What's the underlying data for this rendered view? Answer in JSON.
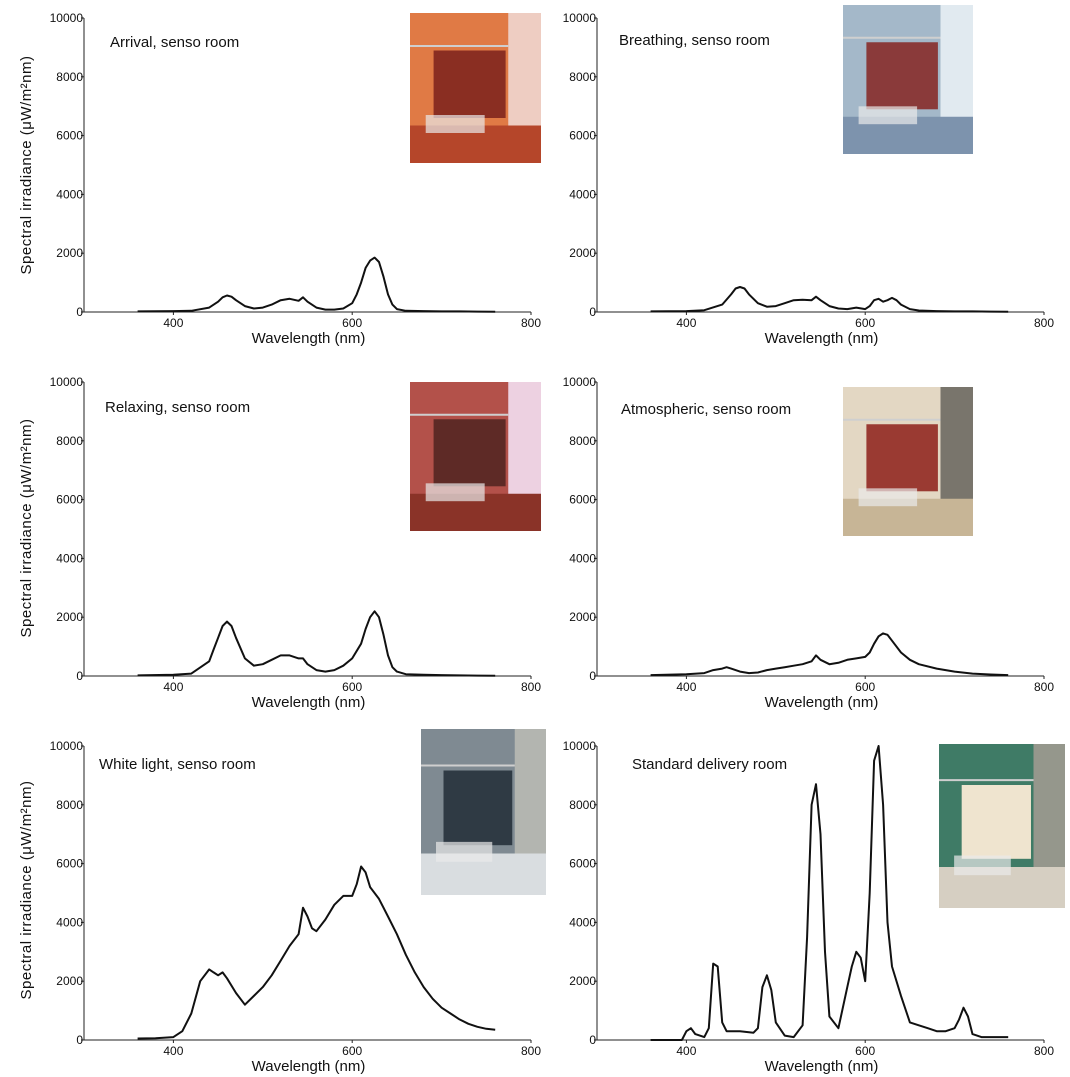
{
  "figure": {
    "ylabel": "Spectral irradiance (μW/m²nm)",
    "xlabel": "Wavelength (nm)"
  },
  "chart_data": [
    {
      "type": "line",
      "title": "Arrival, senso room",
      "xlabel": "Wavelength (nm)",
      "ylabel": "Spectral irradiance (μW/m²nm)",
      "xlim": [
        300,
        800
      ],
      "ylim": [
        0,
        10000
      ],
      "xticks": [
        400,
        600,
        800
      ],
      "yticks": [
        0,
        2000,
        4000,
        6000,
        8000,
        10000
      ],
      "grid": false,
      "photo": {
        "name": "arrival-room-photo",
        "colors": [
          "#b5462a",
          "#e07a45",
          "#8a2e22",
          "#f0d6cf"
        ]
      },
      "x": [
        360,
        400,
        420,
        440,
        450,
        455,
        460,
        465,
        470,
        480,
        490,
        500,
        510,
        520,
        530,
        540,
        545,
        550,
        560,
        570,
        580,
        590,
        600,
        605,
        610,
        615,
        620,
        625,
        630,
        635,
        640,
        645,
        650,
        660,
        680,
        700,
        720,
        740,
        760
      ],
      "values": [
        20,
        30,
        40,
        150,
        350,
        500,
        560,
        520,
        400,
        200,
        120,
        150,
        250,
        400,
        450,
        380,
        500,
        350,
        150,
        80,
        80,
        120,
        300,
        600,
        1000,
        1500,
        1750,
        1850,
        1700,
        1200,
        600,
        250,
        100,
        40,
        30,
        20,
        20,
        15,
        10
      ]
    },
    {
      "type": "line",
      "title": "Breathing, senso room",
      "xlabel": "Wavelength (nm)",
      "ylabel": "Spectral irradiance (μW/m²nm)",
      "xlim": [
        300,
        800
      ],
      "ylim": [
        0,
        10000
      ],
      "xticks": [
        400,
        600,
        800
      ],
      "yticks": [
        0,
        2000,
        4000,
        6000,
        8000,
        10000
      ],
      "grid": false,
      "photo": {
        "name": "breathing-room-photo",
        "colors": [
          "#7d93ad",
          "#a4b8c9",
          "#8a3a3a",
          "#e8f0f4"
        ]
      },
      "x": [
        360,
        400,
        420,
        440,
        450,
        455,
        460,
        465,
        470,
        480,
        490,
        500,
        510,
        520,
        530,
        540,
        545,
        550,
        560,
        570,
        580,
        590,
        600,
        605,
        610,
        615,
        620,
        625,
        630,
        635,
        640,
        650,
        660,
        680,
        700,
        720,
        740,
        760
      ],
      "values": [
        20,
        30,
        60,
        250,
        600,
        800,
        850,
        800,
        600,
        300,
        180,
        200,
        300,
        400,
        420,
        400,
        520,
        400,
        200,
        120,
        100,
        150,
        100,
        200,
        400,
        450,
        350,
        400,
        480,
        400,
        250,
        100,
        50,
        30,
        20,
        20,
        15,
        10
      ]
    },
    {
      "type": "line",
      "title": "Relaxing, senso room",
      "xlabel": "Wavelength (nm)",
      "ylabel": "Spectral irradiance (μW/m²nm)",
      "xlim": [
        300,
        800
      ],
      "ylim": [
        0,
        10000
      ],
      "xticks": [
        400,
        600,
        800
      ],
      "yticks": [
        0,
        2000,
        4000,
        6000,
        8000,
        10000
      ],
      "grid": false,
      "photo": {
        "name": "relaxing-room-photo",
        "colors": [
          "#8a3328",
          "#b3514a",
          "#5e2a26",
          "#f3dff2"
        ]
      },
      "x": [
        360,
        400,
        420,
        440,
        445,
        450,
        455,
        460,
        465,
        470,
        480,
        490,
        500,
        510,
        520,
        530,
        540,
        545,
        550,
        560,
        570,
        580,
        590,
        600,
        610,
        615,
        620,
        625,
        630,
        635,
        640,
        645,
        650,
        660,
        680,
        700,
        720,
        740,
        760
      ],
      "values": [
        20,
        40,
        80,
        500,
        900,
        1300,
        1700,
        1850,
        1700,
        1300,
        600,
        350,
        400,
        550,
        700,
        700,
        600,
        600,
        400,
        200,
        150,
        200,
        350,
        600,
        1100,
        1600,
        2000,
        2200,
        2000,
        1400,
        700,
        300,
        150,
        60,
        40,
        30,
        20,
        15,
        10
      ]
    },
    {
      "type": "line",
      "title": "Atmospheric, senso room",
      "xlabel": "Wavelength (nm)",
      "ylabel": "Spectral irradiance (μW/m²nm)",
      "xlim": [
        300,
        800
      ],
      "ylim": [
        0,
        10000
      ],
      "xticks": [
        400,
        600,
        800
      ],
      "yticks": [
        0,
        2000,
        4000,
        6000,
        8000,
        10000
      ],
      "grid": false,
      "photo": {
        "name": "atmospheric-room-photo",
        "colors": [
          "#c7b596",
          "#e3d7c3",
          "#9a3a32",
          "#6d6a63"
        ]
      },
      "x": [
        360,
        400,
        420,
        430,
        440,
        445,
        450,
        460,
        470,
        480,
        490,
        500,
        510,
        520,
        530,
        540,
        545,
        550,
        560,
        570,
        580,
        590,
        600,
        605,
        610,
        615,
        620,
        625,
        630,
        640,
        650,
        660,
        680,
        700,
        720,
        740,
        760
      ],
      "values": [
        30,
        60,
        100,
        200,
        250,
        300,
        250,
        150,
        100,
        120,
        200,
        250,
        300,
        350,
        400,
        500,
        700,
        550,
        400,
        450,
        550,
        600,
        650,
        800,
        1100,
        1350,
        1450,
        1400,
        1200,
        800,
        550,
        400,
        250,
        150,
        80,
        50,
        30
      ]
    },
    {
      "type": "line",
      "title": "White light, senso room",
      "xlabel": "Wavelength (nm)",
      "ylabel": "Spectral irradiance (μW/m²nm)",
      "xlim": [
        300,
        800
      ],
      "ylim": [
        0,
        10000
      ],
      "xticks": [
        400,
        600,
        800
      ],
      "yticks": [
        0,
        2000,
        4000,
        6000,
        8000,
        10000
      ],
      "grid": false,
      "photo": {
        "name": "white-light-room-photo",
        "colors": [
          "#d9dde0",
          "#7f8a92",
          "#2f3a44",
          "#b9b9b4"
        ]
      },
      "x": [
        360,
        380,
        400,
        410,
        420,
        430,
        440,
        445,
        450,
        455,
        460,
        470,
        480,
        490,
        500,
        510,
        520,
        530,
        540,
        545,
        550,
        555,
        560,
        570,
        580,
        590,
        600,
        605,
        610,
        615,
        620,
        630,
        640,
        650,
        660,
        670,
        680,
        690,
        700,
        710,
        720,
        730,
        740,
        750,
        760
      ],
      "values": [
        50,
        60,
        100,
        300,
        900,
        2000,
        2400,
        2300,
        2200,
        2300,
        2100,
        1600,
        1200,
        1500,
        1800,
        2200,
        2700,
        3200,
        3600,
        4500,
        4200,
        3800,
        3700,
        4100,
        4600,
        4900,
        4900,
        5300,
        5900,
        5700,
        5200,
        4800,
        4200,
        3600,
        2900,
        2300,
        1800,
        1400,
        1100,
        900,
        700,
        550,
        450,
        380,
        350
      ]
    },
    {
      "type": "line",
      "title": "Standard delivery room",
      "xlabel": "Wavelength (nm)",
      "ylabel": "Spectral irradiance (μW/m²nm)",
      "xlim": [
        300,
        800
      ],
      "ylim": [
        0,
        10000
      ],
      "xticks": [
        400,
        600,
        800
      ],
      "yticks": [
        0,
        2000,
        4000,
        6000,
        8000,
        10000
      ],
      "grid": false,
      "photo": {
        "name": "delivery-room-photo",
        "colors": [
          "#d6cfc2",
          "#3f7b66",
          "#efe4cf",
          "#9f9a90"
        ]
      },
      "x": [
        360,
        395,
        400,
        405,
        410,
        420,
        425,
        430,
        435,
        440,
        445,
        460,
        475,
        480,
        485,
        490,
        495,
        500,
        510,
        520,
        530,
        535,
        540,
        545,
        550,
        555,
        560,
        570,
        580,
        585,
        590,
        595,
        600,
        605,
        610,
        615,
        620,
        625,
        630,
        640,
        650,
        660,
        670,
        680,
        690,
        700,
        705,
        710,
        715,
        720,
        730,
        760
      ],
      "values": [
        0,
        0,
        300,
        400,
        200,
        100,
        400,
        2600,
        2500,
        600,
        300,
        300,
        250,
        400,
        1800,
        2200,
        1700,
        600,
        150,
        100,
        500,
        3500,
        8000,
        8700,
        7000,
        3000,
        800,
        400,
        1800,
        2500,
        3000,
        2800,
        2000,
        5000,
        9500,
        10000,
        8000,
        4000,
        2500,
        1500,
        600,
        500,
        400,
        300,
        300,
        400,
        700,
        1100,
        800,
        200,
        100,
        100
      ]
    }
  ]
}
